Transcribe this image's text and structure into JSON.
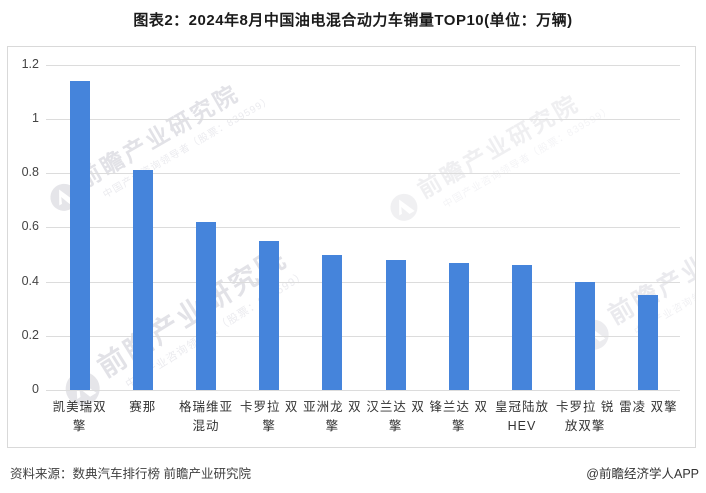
{
  "title": "图表2：2024年8月中国油电混合动力车销量TOP10(单位：万辆)",
  "footer": {
    "source": "资料来源：数典汽车排行榜 前瞻产业研究院",
    "credit": "@前瞻经济学人APP"
  },
  "watermark": {
    "big_text": "前瞻产业研究院",
    "small_text": "中国产业咨询领导者（股票：839599）"
  },
  "chart_data": {
    "type": "bar",
    "title": "图表2：2024年8月中国油电混合动力车销量TOP10(单位：万辆)",
    "unit": "万辆",
    "categories": [
      "凯美瑞双擎",
      "赛那",
      "格瑞维亚混动",
      "卡罗拉双擎",
      "亚洲龙双擎",
      "汉兰达双擎",
      "锋兰达双擎",
      "皇冠陆放HEV",
      "卡罗拉锐放双擎",
      "雷凌双擎"
    ],
    "category_lines": [
      [
        "凯美瑞双",
        "擎"
      ],
      [
        "赛那"
      ],
      [
        "格瑞维亚",
        "混动"
      ],
      [
        "卡罗拉 双",
        "擎"
      ],
      [
        "亚洲龙 双",
        "擎"
      ],
      [
        "汉兰达 双",
        "擎"
      ],
      [
        "锋兰达 双",
        "擎"
      ],
      [
        "皇冠陆放",
        "HEV"
      ],
      [
        "卡罗拉 锐",
        "放双擎"
      ],
      [
        "雷凌 双擎"
      ]
    ],
    "values": [
      1.14,
      0.81,
      0.62,
      0.55,
      0.5,
      0.48,
      0.47,
      0.46,
      0.4,
      0.35
    ],
    "xlabel": "",
    "ylabel": "",
    "ylim": [
      0,
      1.2
    ],
    "yticks": [
      0,
      0.2,
      0.4,
      0.6,
      0.8,
      1,
      1.2
    ],
    "ytick_labels": [
      "0",
      "0.2",
      "0.4",
      "0.6",
      "0.8",
      "1",
      "1.2"
    ],
    "bar_color": "#4584DB",
    "grid": true,
    "legend": "none"
  },
  "colors": {
    "bar": "#4584DB",
    "gridline": "#dcdcdc",
    "border": "#d9d9d9",
    "title_text": "#1a1a1a",
    "axis_text": "#444444",
    "watermark_text": "#e2e2e7"
  }
}
